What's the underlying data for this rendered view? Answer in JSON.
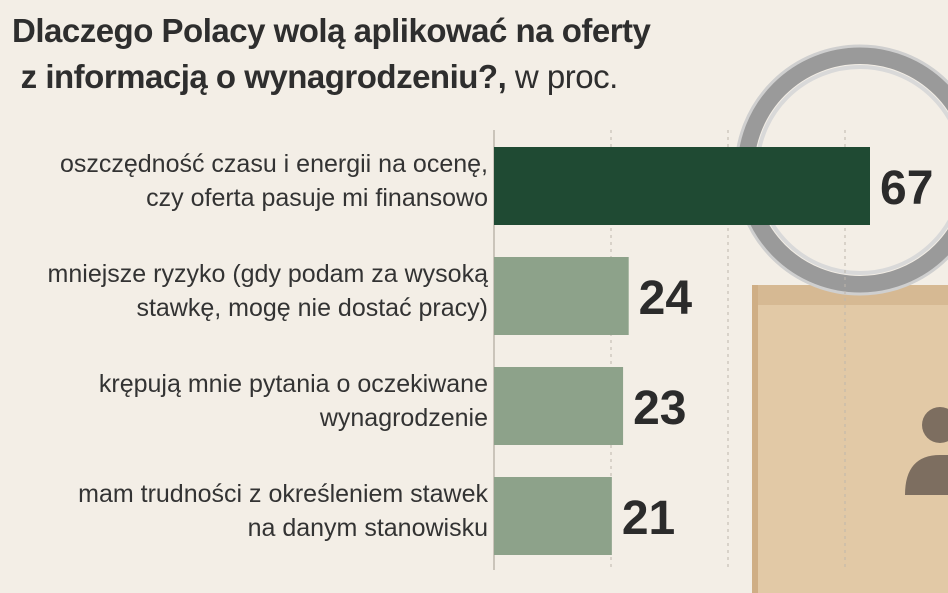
{
  "title": {
    "line1": "Dlaczego Polacy wolą aplikować na oferty",
    "line2": "z informacją o wynagrodzeniu?,",
    "unit": "w proc."
  },
  "colors": {
    "highlight_bar": "#1f4a33",
    "bar": "#8da28a",
    "value_text": "#2b2b2b",
    "gridline": "#bdb6ac"
  },
  "chart_data": {
    "type": "bar",
    "orientation": "horizontal",
    "title": "Dlaczego Polacy wolą aplikować na oferty z informacją o wynagrodzeniu?, w proc.",
    "categories": [
      [
        "oszczędność czasu i energii na ocenę,",
        "czy oferta pasuje mi finansowo"
      ],
      [
        "mniejsze ryzyko (gdy podam za wysoką",
        "stawkę, mogę nie dostać pracy)"
      ],
      [
        "krępują mnie pytania o oczekiwane",
        "wynagrodzenie"
      ],
      [
        "mam trudności z określeniem stawek",
        "na danym stanowisku"
      ]
    ],
    "values": [
      67,
      24,
      23,
      21
    ],
    "highlight_index": 0,
    "xlim": [
      0,
      67
    ],
    "unit": "w proc.",
    "grid": true
  }
}
